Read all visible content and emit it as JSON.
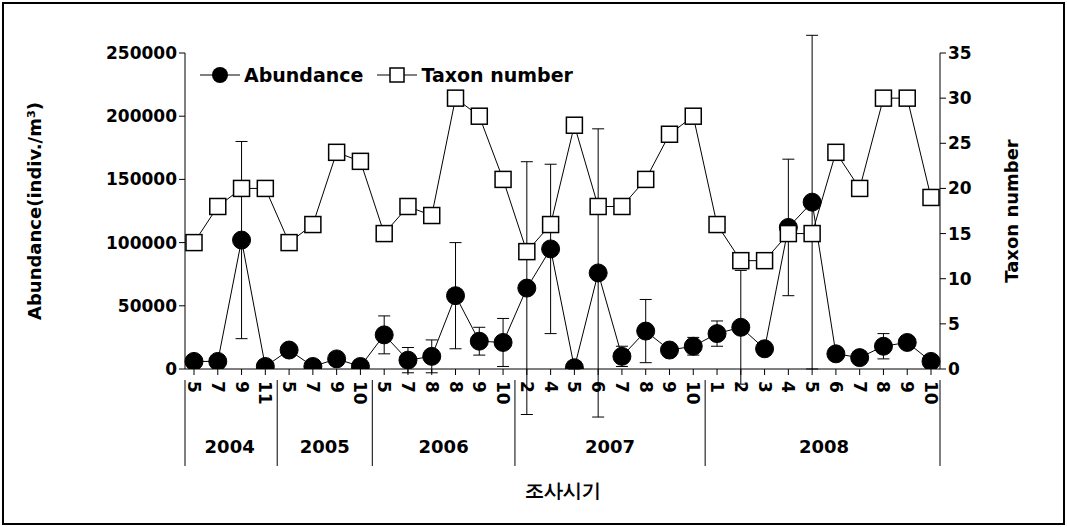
{
  "chart_data": {
    "type": "line",
    "x_label": "조사시기",
    "y_label": "Abundance(indiv./m³)",
    "y2_label": "Taxon number",
    "categories": [
      "5",
      "7",
      "9",
      "11",
      "5",
      "7",
      "9",
      "10",
      "5",
      "7",
      "8",
      "8",
      "9",
      "10",
      "2",
      "4",
      "5",
      "6",
      "7",
      "8",
      "9",
      "10",
      "1",
      "2",
      "3",
      "4",
      "5",
      "6",
      "7",
      "8",
      "9",
      "10"
    ],
    "groups": [
      {
        "label": "2004",
        "span": 4
      },
      {
        "label": "2005",
        "span": 4
      },
      {
        "label": "2006",
        "span": 6
      },
      {
        "label": "2007",
        "span": 8
      },
      {
        "label": "2008",
        "span": 10
      }
    ],
    "series": [
      {
        "name": "Abundance",
        "color": "#000000",
        "marker": "circle",
        "line_style": "solid",
        "values": [
          6000,
          6000,
          102000,
          2000,
          15000,
          2000,
          8000,
          2000,
          27000,
          7000,
          10000,
          58000,
          22000,
          21000,
          64000,
          95000,
          1000,
          76000,
          10000,
          30000,
          15000,
          18000,
          28000,
          33000,
          16000,
          112000,
          132000,
          12000,
          9000,
          18000,
          21000,
          6000
        ],
        "errors": [
          1000,
          1000,
          78000,
          1000,
          4000,
          1000,
          2000,
          1000,
          15000,
          10000,
          13000,
          42000,
          11000,
          19000,
          100000,
          67000,
          1000,
          114000,
          8000,
          25000,
          3000,
          7000,
          10000,
          45000,
          3000,
          54000,
          132000,
          2000,
          2000,
          10000,
          4000,
          1000
        ]
      },
      {
        "name": "Taxon number",
        "color": "#000000",
        "marker": "square",
        "line_style": "solid",
        "axis": "y2",
        "values": [
          14,
          18,
          20,
          20,
          14,
          16,
          24,
          23,
          15,
          18,
          17,
          30,
          28,
          21,
          13,
          16,
          27,
          18,
          18,
          21,
          26,
          28,
          16,
          12,
          12,
          15,
          15,
          24,
          20,
          30,
          30,
          19
        ]
      }
    ],
    "ylim": [
      0,
      250000
    ],
    "yticks": [
      0,
      50000,
      100000,
      150000,
      200000,
      250000
    ],
    "y2lim": [
      0,
      35
    ],
    "y2ticks": [
      0,
      5,
      10,
      15,
      20,
      25,
      30,
      35
    ],
    "legend": "upper left",
    "grid": false
  }
}
